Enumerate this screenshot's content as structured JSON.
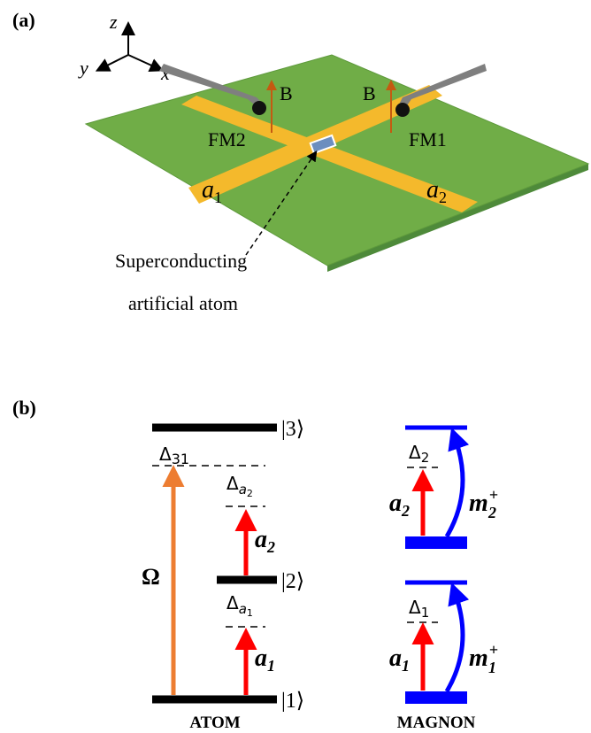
{
  "panel_a": {
    "label": "(a)",
    "axes": {
      "z": "z",
      "y": "y",
      "x": "x"
    },
    "field_left": "B",
    "field_right": "B",
    "fm_left": "FM2",
    "fm_right": "FM1",
    "port_left": {
      "base": "a",
      "sub": "1"
    },
    "port_right": {
      "base": "a",
      "sub": "2"
    },
    "atom_label": [
      "Superconducting",
      "artificial atom"
    ]
  },
  "panel_b": {
    "label": "(b)",
    "atom": {
      "level3": "|3⟩",
      "level2": "|2⟩",
      "level1": "|1⟩",
      "delta31": {
        "base": "Δ",
        "sub": "31"
      },
      "delta_a2": {
        "base": "Δ",
        "sub": "a",
        "subsub": "2"
      },
      "delta_a1": {
        "base": "Δ",
        "sub": "a",
        "subsub": "1"
      },
      "omega": "Ω",
      "drive2": {
        "base": "a",
        "sub": "2"
      },
      "drive1": {
        "base": "a",
        "sub": "1"
      },
      "caption": "ATOM"
    },
    "magnon": {
      "delta2": {
        "base": "Δ",
        "sub": "2"
      },
      "delta1": {
        "base": "Δ",
        "sub": "1"
      },
      "drive2": {
        "base": "a",
        "sub": "2"
      },
      "drive1": {
        "base": "a",
        "sub": "1"
      },
      "mode2": {
        "base": "m",
        "sup": "+",
        "sub": "2"
      },
      "mode1": {
        "base": "m",
        "sup": "+",
        "sub": "1"
      },
      "caption": "MAGNON"
    }
  }
}
